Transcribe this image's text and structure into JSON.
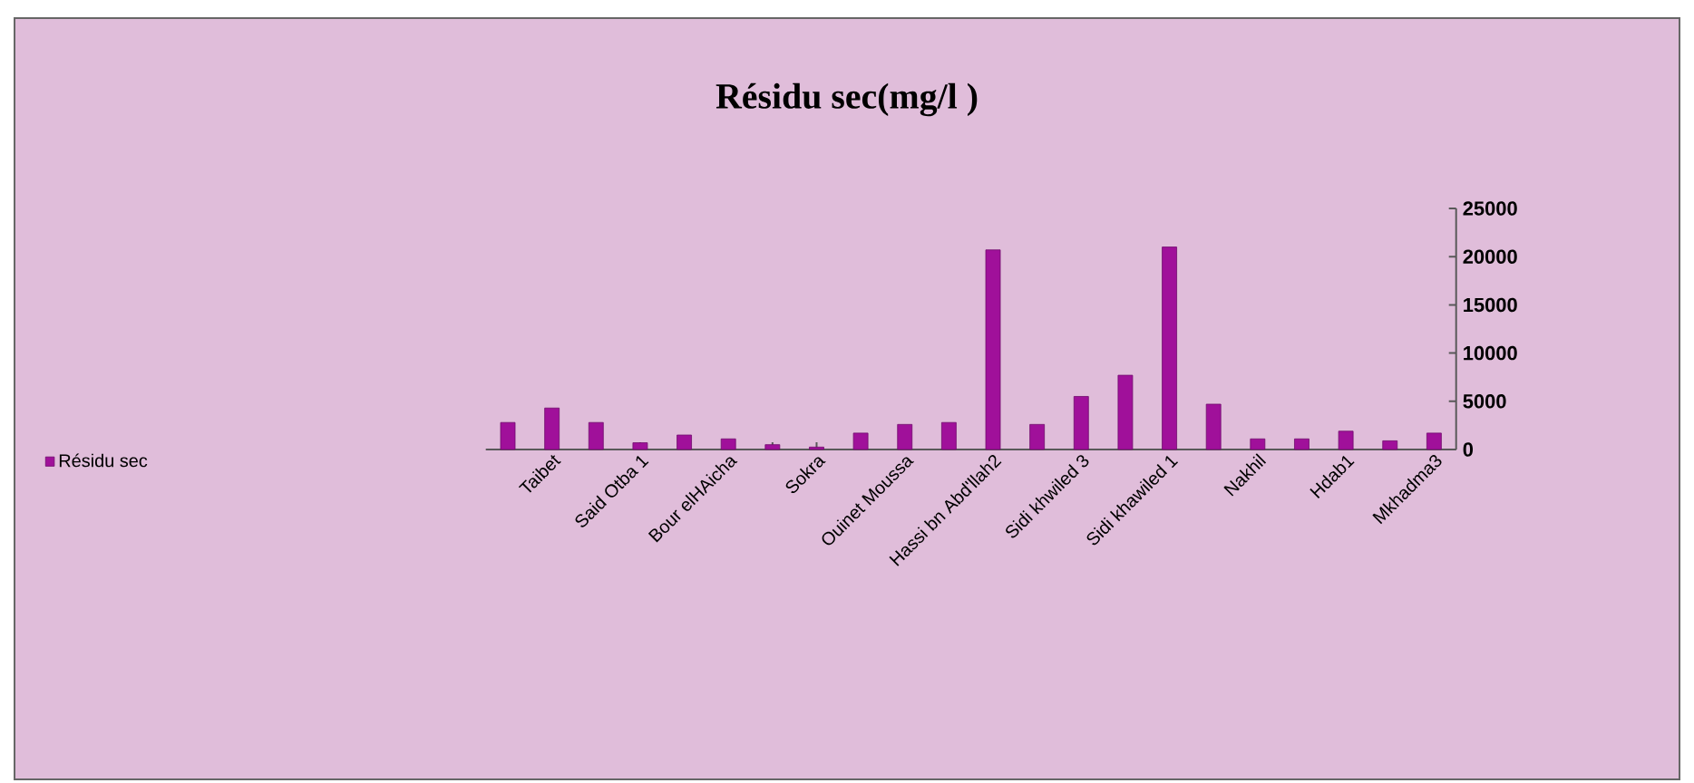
{
  "chart_data": {
    "type": "bar",
    "title": "Résidu sec(mg/l )",
    "categories": [
      null,
      "Taibet",
      null,
      "Said Otba 1",
      null,
      "Bour elHAicha",
      null,
      "Sokra",
      null,
      "Ouinet Moussa",
      null,
      "Hassi bn Abd'llah2",
      null,
      "Sidi khwiled 3",
      null,
      "Sidi khawiled 1",
      null,
      "Nakhil",
      null,
      "Hdab1",
      null,
      "Mkhadma3"
    ],
    "series": [
      {
        "name": "Résidu sec",
        "color": "#a0109a",
        "values": [
          2800,
          4300,
          2800,
          700,
          1500,
          1100,
          500,
          250,
          1700,
          2600,
          2800,
          20700,
          2600,
          5500,
          7700,
          21000,
          4700,
          1100,
          1100,
          1900,
          900,
          1700
        ]
      }
    ],
    "ylim": [
      0,
      25000
    ],
    "yticks": [
      0,
      5000,
      10000,
      15000,
      20000,
      25000
    ],
    "legend": "left"
  }
}
